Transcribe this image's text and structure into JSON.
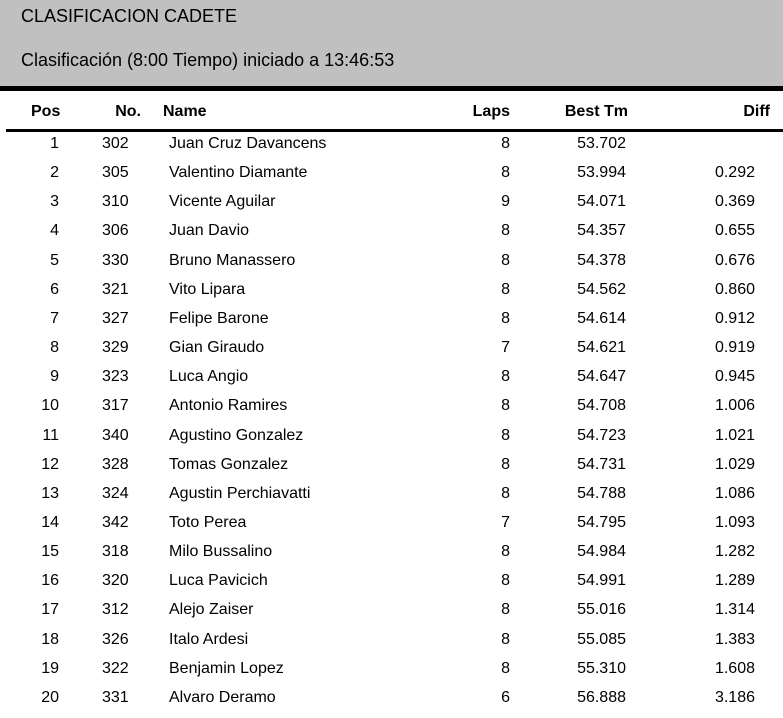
{
  "header": {
    "title": "CLASIFICACION CADETE",
    "subtitle": "Clasificación  (8:00 Tiempo) iniciado a 13:46:53"
  },
  "columns": {
    "pos": "Pos",
    "no": "No.",
    "name": "Name",
    "laps": "Laps",
    "best": "Best Tm",
    "diff": "Diff"
  },
  "rows": [
    {
      "pos": "1",
      "no": "302",
      "name": "Juan Cruz Davancens",
      "laps": "8",
      "best": "53.702",
      "diff": ""
    },
    {
      "pos": "2",
      "no": "305",
      "name": "Valentino Diamante",
      "laps": "8",
      "best": "53.994",
      "diff": "0.292"
    },
    {
      "pos": "3",
      "no": "310",
      "name": "Vicente Aguilar",
      "laps": "9",
      "best": "54.071",
      "diff": "0.369"
    },
    {
      "pos": "4",
      "no": "306",
      "name": "Juan Davio",
      "laps": "8",
      "best": "54.357",
      "diff": "0.655"
    },
    {
      "pos": "5",
      "no": "330",
      "name": "Bruno Manassero",
      "laps": "8",
      "best": "54.378",
      "diff": "0.676"
    },
    {
      "pos": "6",
      "no": "321",
      "name": "Vito Lipara",
      "laps": "8",
      "best": "54.562",
      "diff": "0.860"
    },
    {
      "pos": "7",
      "no": "327",
      "name": "Felipe Barone",
      "laps": "8",
      "best": "54.614",
      "diff": "0.912"
    },
    {
      "pos": "8",
      "no": "329",
      "name": "Gian Giraudo",
      "laps": "7",
      "best": "54.621",
      "diff": "0.919"
    },
    {
      "pos": "9",
      "no": "323",
      "name": "Luca Angio",
      "laps": "8",
      "best": "54.647",
      "diff": "0.945"
    },
    {
      "pos": "10",
      "no": "317",
      "name": "Antonio Ramires",
      "laps": "8",
      "best": "54.708",
      "diff": "1.006"
    },
    {
      "pos": "11",
      "no": "340",
      "name": "Agustino Gonzalez",
      "laps": "8",
      "best": "54.723",
      "diff": "1.021"
    },
    {
      "pos": "12",
      "no": "328",
      "name": "Tomas Gonzalez",
      "laps": "8",
      "best": "54.731",
      "diff": "1.029"
    },
    {
      "pos": "13",
      "no": "324",
      "name": "Agustin Perchiavatti",
      "laps": "8",
      "best": "54.788",
      "diff": "1.086"
    },
    {
      "pos": "14",
      "no": "342",
      "name": "Toto Perea",
      "laps": "7",
      "best": "54.795",
      "diff": "1.093"
    },
    {
      "pos": "15",
      "no": "318",
      "name": "Milo Bussalino",
      "laps": "8",
      "best": "54.984",
      "diff": "1.282"
    },
    {
      "pos": "16",
      "no": "320",
      "name": "Luca Pavicich",
      "laps": "8",
      "best": "54.991",
      "diff": "1.289"
    },
    {
      "pos": "17",
      "no": "312",
      "name": "Alejo Zaiser",
      "laps": "8",
      "best": "55.016",
      "diff": "1.314"
    },
    {
      "pos": "18",
      "no": "326",
      "name": "Italo Ardesi",
      "laps": "8",
      "best": "55.085",
      "diff": "1.383"
    },
    {
      "pos": "19",
      "no": "322",
      "name": "Benjamin Lopez",
      "laps": "8",
      "best": "55.310",
      "diff": "1.608"
    },
    {
      "pos": "20",
      "no": "331",
      "name": "Alvaro Deramo",
      "laps": "6",
      "best": "56.888",
      "diff": "3.186"
    }
  ]
}
